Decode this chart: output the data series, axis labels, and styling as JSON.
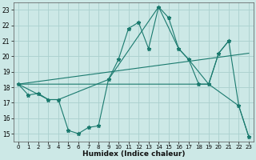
{
  "xlabel": "Humidex (Indice chaleur)",
  "xlim": [
    -0.5,
    23.5
  ],
  "ylim": [
    14.5,
    23.5
  ],
  "xticks": [
    0,
    1,
    2,
    3,
    4,
    5,
    6,
    7,
    8,
    9,
    10,
    11,
    12,
    13,
    14,
    15,
    16,
    17,
    18,
    19,
    20,
    21,
    22,
    23
  ],
  "yticks": [
    15,
    16,
    17,
    18,
    19,
    20,
    21,
    22,
    23
  ],
  "background_color": "#cce8e6",
  "grid_color": "#aad0ce",
  "line_color": "#1a7a6e",
  "main_x": [
    0,
    1,
    2,
    3,
    4,
    5,
    6,
    7,
    8,
    9,
    10,
    11,
    12,
    13,
    14,
    15,
    16,
    17,
    18,
    19,
    20,
    21,
    22,
    23
  ],
  "main_y": [
    18.2,
    17.5,
    17.6,
    17.2,
    17.2,
    15.2,
    15.0,
    15.4,
    15.5,
    18.5,
    19.8,
    21.8,
    22.2,
    20.5,
    23.2,
    22.5,
    20.5,
    19.8,
    18.2,
    18.2,
    20.2,
    21.0,
    16.8,
    14.8
  ],
  "line2_x": [
    0,
    3,
    4,
    9,
    14,
    16,
    17,
    19,
    20,
    21
  ],
  "line2_y": [
    18.2,
    17.2,
    17.2,
    18.5,
    23.2,
    20.5,
    19.8,
    18.2,
    20.2,
    21.0
  ],
  "line3_x": [
    0,
    19,
    22,
    23
  ],
  "line3_y": [
    18.2,
    18.2,
    16.8,
    14.8
  ],
  "line4_x": [
    0,
    23
  ],
  "line4_y": [
    18.2,
    20.2
  ]
}
